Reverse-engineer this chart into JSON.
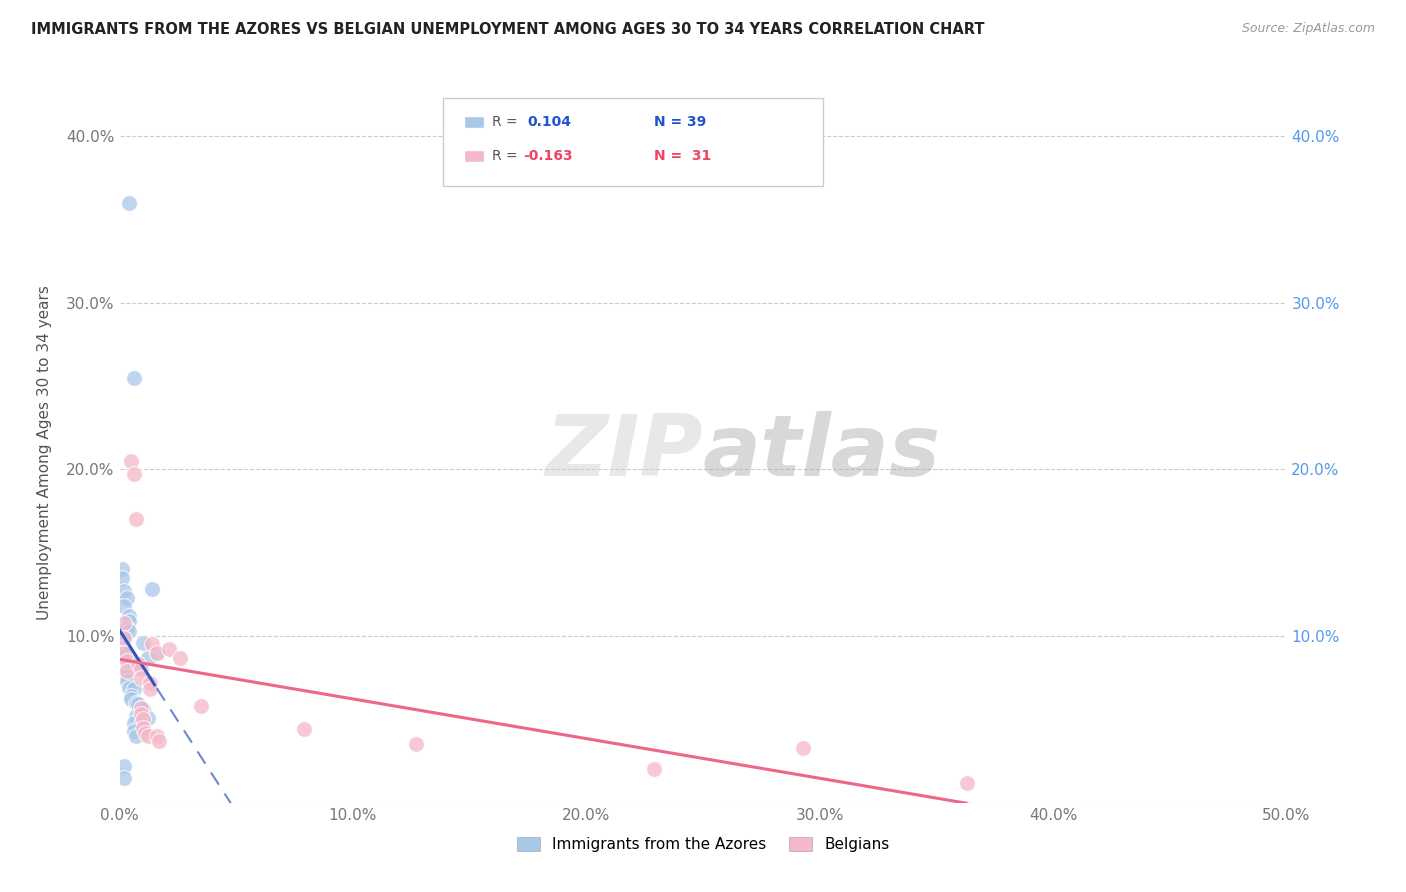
{
  "title": "IMMIGRANTS FROM THE AZORES VS BELGIAN UNEMPLOYMENT AMONG AGES 30 TO 34 YEARS CORRELATION CHART",
  "source": "Source: ZipAtlas.com",
  "ylabel": "Unemployment Among Ages 30 to 34 years",
  "xlim": [
    0.0,
    0.5
  ],
  "ylim": [
    0.0,
    0.42
  ],
  "xticks": [
    0.0,
    0.1,
    0.2,
    0.3,
    0.4,
    0.5
  ],
  "xtick_labels": [
    "0.0%",
    "10.0%",
    "20.0%",
    "30.0%",
    "40.0%",
    "50.0%"
  ],
  "yticks": [
    0.0,
    0.1,
    0.2,
    0.3,
    0.4
  ],
  "ytick_labels_left": [
    "",
    "10.0%",
    "20.0%",
    "30.0%",
    "40.0%"
  ],
  "ytick_labels_right": [
    "",
    "10.0%",
    "20.0%",
    "30.0%",
    "40.0%"
  ],
  "legend_r_blue": "R =  0.104",
  "legend_n_blue": "N = 39",
  "legend_r_pink": "R = -0.163",
  "legend_n_pink": "N =  31",
  "blue_color": "#a8c8e8",
  "pink_color": "#f4b8c8",
  "blue_line_color": "#3355bb",
  "pink_line_color": "#ee6688",
  "blue_r_color": "#2255cc",
  "pink_r_color": "#ee4466",
  "right_axis_color": "#5599ee",
  "watermark": "ZIPatlas",
  "blue_scatter_x": [
    0.004,
    0.006,
    0.001,
    0.001,
    0.002,
    0.003,
    0.002,
    0.004,
    0.004,
    0.003,
    0.004,
    0.002,
    0.002,
    0.003,
    0.004,
    0.002,
    0.002,
    0.003,
    0.003,
    0.004,
    0.006,
    0.005,
    0.005,
    0.007,
    0.008,
    0.009,
    0.01,
    0.007,
    0.012,
    0.006,
    0.009,
    0.006,
    0.007,
    0.01,
    0.012,
    0.014,
    0.016,
    0.002,
    0.002
  ],
  "blue_scatter_y": [
    0.36,
    0.255,
    0.14,
    0.135,
    0.127,
    0.123,
    0.118,
    0.112,
    0.109,
    0.105,
    0.103,
    0.098,
    0.093,
    0.089,
    0.086,
    0.082,
    0.079,
    0.076,
    0.073,
    0.069,
    0.068,
    0.064,
    0.062,
    0.06,
    0.059,
    0.057,
    0.056,
    0.052,
    0.051,
    0.048,
    0.047,
    0.043,
    0.04,
    0.096,
    0.087,
    0.128,
    0.09,
    0.022,
    0.015
  ],
  "pink_scatter_x": [
    0.002,
    0.002,
    0.002,
    0.003,
    0.003,
    0.005,
    0.006,
    0.007,
    0.008,
    0.009,
    0.009,
    0.009,
    0.009,
    0.01,
    0.01,
    0.011,
    0.012,
    0.013,
    0.013,
    0.014,
    0.016,
    0.016,
    0.017,
    0.021,
    0.026,
    0.035,
    0.079,
    0.127,
    0.229,
    0.293,
    0.363
  ],
  "pink_scatter_y": [
    0.108,
    0.099,
    0.09,
    0.085,
    0.079,
    0.205,
    0.197,
    0.17,
    0.083,
    0.08,
    0.075,
    0.057,
    0.053,
    0.05,
    0.045,
    0.042,
    0.04,
    0.072,
    0.068,
    0.095,
    0.09,
    0.04,
    0.037,
    0.092,
    0.087,
    0.058,
    0.044,
    0.035,
    0.02,
    0.033,
    0.012
  ]
}
